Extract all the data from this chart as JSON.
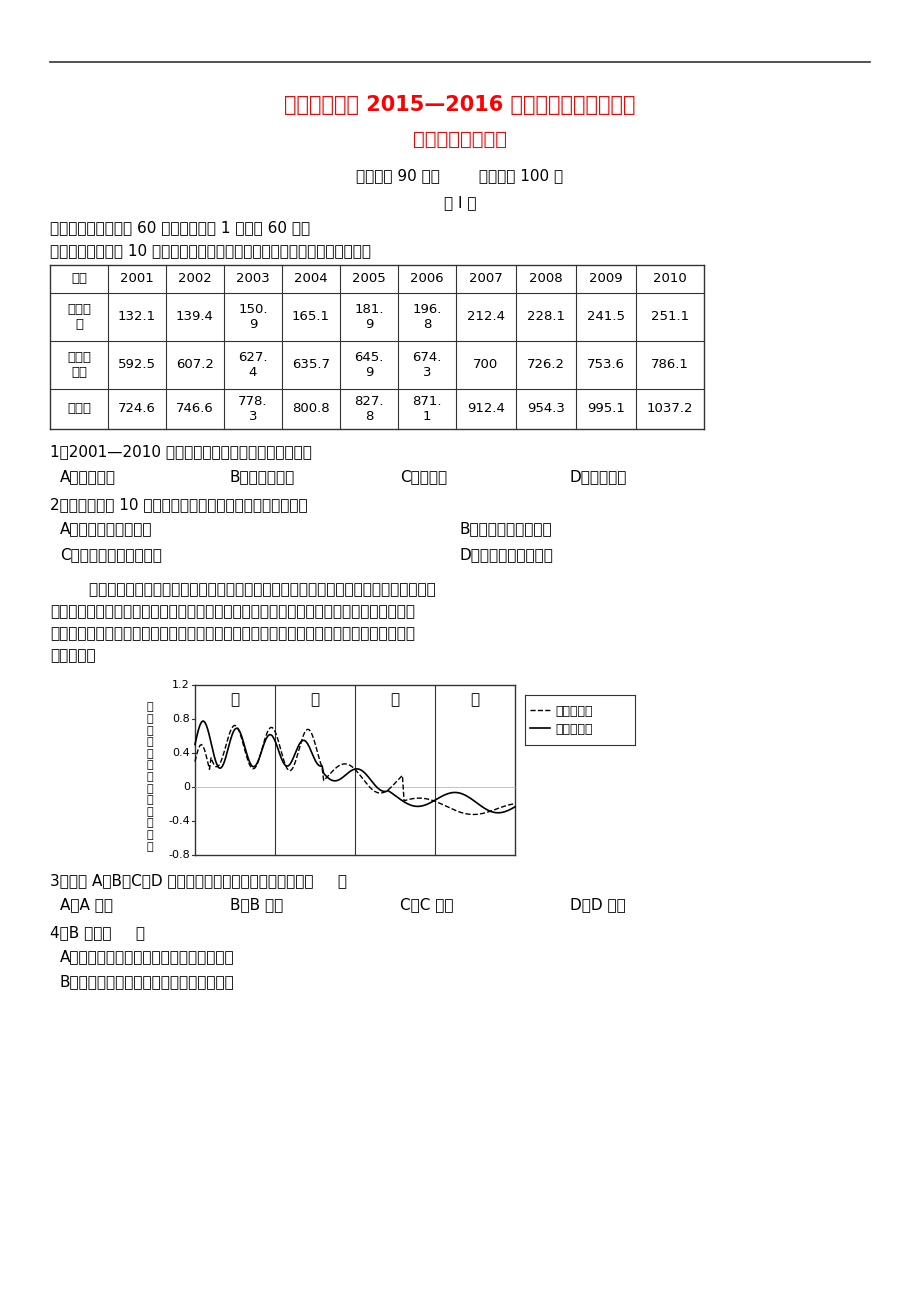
{
  "title1": "河北冀州中学 2015—2016 学年度上学期月三考试",
  "title2": "高三年级地理试题",
  "subtitle": "考试时间 90 分钟        试题分数 100 分",
  "section1": "第 I 卷",
  "part1_title": "一、单项选择题（共 60 小题，每小题 1 分，共 60 分）",
  "table_intro": "读我国某南方城市 10 年间人口增长统计表（单位：万人），回答下列问题。",
  "table_headers": [
    "年份",
    "2001",
    "2002",
    "2003",
    "2004",
    "2005",
    "2006",
    "2007",
    "2008",
    "2009",
    "2010"
  ],
  "table_row1": [
    "户籍人\n口",
    "132.1",
    "139.4",
    "150.\n9",
    "165.1",
    "181.\n9",
    "196.\n8",
    "212.4",
    "228.1",
    "241.5",
    "251.1"
  ],
  "table_row2": [
    "非户籍\n人口",
    "592.5",
    "607.2",
    "627.\n4",
    "635.7",
    "645.\n9",
    "674.\n3",
    "700",
    "726.2",
    "753.6",
    "786.1"
  ],
  "table_row3": [
    "总人口",
    "724.6",
    "746.6",
    "778.\n3",
    "800.8",
    "827.\n8",
    "871.\n1",
    "912.4",
    "954.3",
    "995.1",
    "1037.2"
  ],
  "q1": "1．2001—2010 年间，该城市人口增长速度最快的是",
  "q1_options": [
    "A．户籍人口",
    "B．非户籍人口",
    "C．总人口",
    "D．无法比较"
  ],
  "q2": "2．该城市人口 10 年间的变化，给该城市带来的主要问题是",
  "q2_optionsAB": [
    "A．城市经济停滞不前",
    "B．青壮年劳动力不足"
  ],
  "q2_optionsCD": [
    "C．人口老龄化更加严重",
    "D．城市房价上涨迅速"
  ],
  "para1": "        城市化过程一般分为景观城市化（即可以被人们所观察到的城市的发展变化，如道路、",
  "para2": "建筑物、绿地等的变化）与人文城市化（即城市内部人口潜在的变化，如人口素质的提高、",
  "para3": "生活方式的改变等）。下图表示某城市区域剖面的景观与人文发展指数分布图。读图，完成",
  "para4": "下列问题。",
  "q3": "3．该市 A、B、C、D 四个区域中城市发展水平最高的是（     ）",
  "q3_options": [
    "A．A 区域",
    "B．B 区域",
    "C．C 区域",
    "D．D 区域"
  ],
  "q4": "4．B 区域（     ）",
  "q4_optionA": "A．目前景观发育程度较高，城市规划合理",
  "q4_optionB": "B．今后需加强道路和城市公共设施的建设",
  "bg_color": "#ffffff",
  "text_color": "#000000",
  "title_color": "#ff0000",
  "line_color": "#333333"
}
